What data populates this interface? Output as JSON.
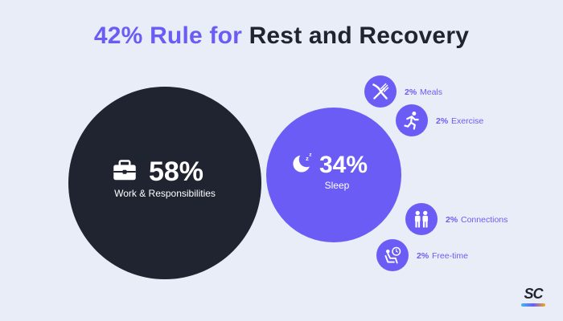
{
  "title": {
    "accent": "42% Rule for",
    "dark": "Rest and Recovery"
  },
  "colors": {
    "accent": "#6b5cf5",
    "dark": "#1f2430",
    "background": "#e9edf7",
    "white": "#ffffff"
  },
  "logo": {
    "text": "SC"
  },
  "chart_data": {
    "type": "bubble",
    "title": "42% Rule for Rest and Recovery",
    "items": [
      {
        "label": "Work & Responsibilities",
        "value": 58,
        "value_text": "58%",
        "icon": "briefcase-icon",
        "color": "#1f2430",
        "kind": "major"
      },
      {
        "label": "Sleep",
        "value": 34,
        "value_text": "34%",
        "icon": "moon-sleep-icon",
        "color": "#6b5cf5",
        "kind": "major"
      },
      {
        "label": "Meals",
        "value": 2,
        "value_text": "2%",
        "icon": "fork-knife-icon",
        "color": "#6b5cf5",
        "kind": "minor"
      },
      {
        "label": "Exercise",
        "value": 2,
        "value_text": "2%",
        "icon": "running-icon",
        "color": "#6b5cf5",
        "kind": "minor"
      },
      {
        "label": "Connections",
        "value": 2,
        "value_text": "2%",
        "icon": "people-icon",
        "color": "#6b5cf5",
        "kind": "minor"
      },
      {
        "label": "Free-time",
        "value": 2,
        "value_text": "2%",
        "icon": "leisure-icon",
        "color": "#6b5cf5",
        "kind": "minor"
      }
    ]
  }
}
